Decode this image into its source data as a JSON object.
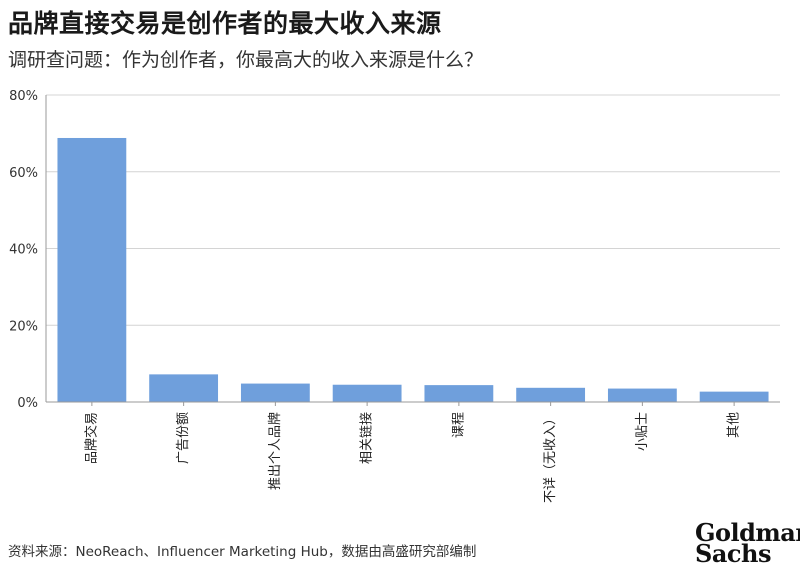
{
  "header": {
    "title": "品牌直接交易是创作者的最大收入来源",
    "subtitle": "调研查问题：作为创作者，你最高大的收入来源是什么？"
  },
  "footer": {
    "source": "资料来源：NeoReach、Influencer Marketing Hub，数据由高盛研究部编制",
    "logo_line1": "Goldman",
    "logo_line2": "Sachs"
  },
  "colors": {
    "bar": "#6f9fdc",
    "grid": "#d4d4d4",
    "axis": "#9a9a9a"
  },
  "chart_data": {
    "type": "bar",
    "title": "品牌直接交易是创作者的最大收入来源",
    "subtitle": "调研查问题：作为创作者，你最高大的收入来源是什么？",
    "categories": [
      "品牌交易",
      "广告份额",
      "推出个人品牌",
      "相关链接",
      "课程",
      "不详（无收入）",
      "小贴士",
      "其他"
    ],
    "values": [
      68.8,
      7.2,
      4.8,
      4.5,
      4.4,
      3.7,
      3.5,
      2.7
    ],
    "value_unit": "%",
    "ylim": [
      0,
      80
    ],
    "yticks": [
      0,
      20,
      40,
      60,
      80
    ],
    "ytick_labels": [
      "0%",
      "20%",
      "40%",
      "60%",
      "80%"
    ],
    "xlabel": "",
    "ylabel": "",
    "grid": true,
    "legend": "none"
  }
}
